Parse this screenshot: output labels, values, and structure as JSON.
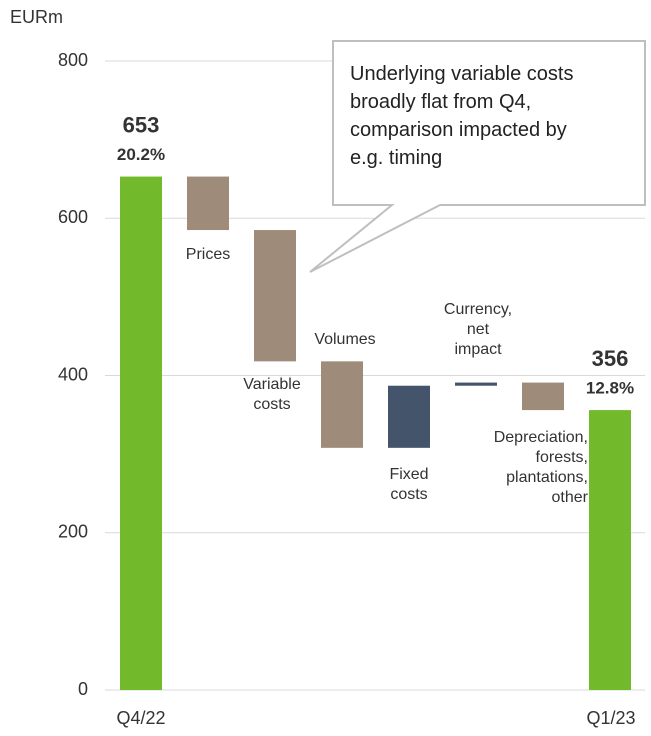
{
  "chart_data": {
    "type": "waterfall",
    "y_axis_label": "EURm",
    "categories": [
      "Q4/22",
      "Prices",
      "Variable costs",
      "Volumes",
      "Fixed costs",
      "Currency, net impact",
      "Depreciation, forests, plantations, other",
      "Q1/23"
    ],
    "values": [
      653,
      -68,
      -167,
      -110,
      79,
      4,
      -35,
      356
    ],
    "measure": [
      "absolute",
      "relative",
      "relative",
      "relative",
      "relative",
      "relative",
      "relative",
      "absolute"
    ],
    "colors": [
      "#72ba2c",
      "#9e8b79",
      "#9e8b79",
      "#9e8b79",
      "#44546a",
      "#44546a",
      "#9e8b79",
      "#72ba2c"
    ],
    "margins": [
      "20.2%",
      null,
      null,
      null,
      null,
      null,
      null,
      "12.8%"
    ],
    "annotation": "Underlying variable costs broadly flat from Q4, comparison impacted by e.g. timing",
    "ylim": [
      0,
      800
    ],
    "yticks": [
      0,
      200,
      400,
      600,
      800
    ],
    "grid": true
  }
}
